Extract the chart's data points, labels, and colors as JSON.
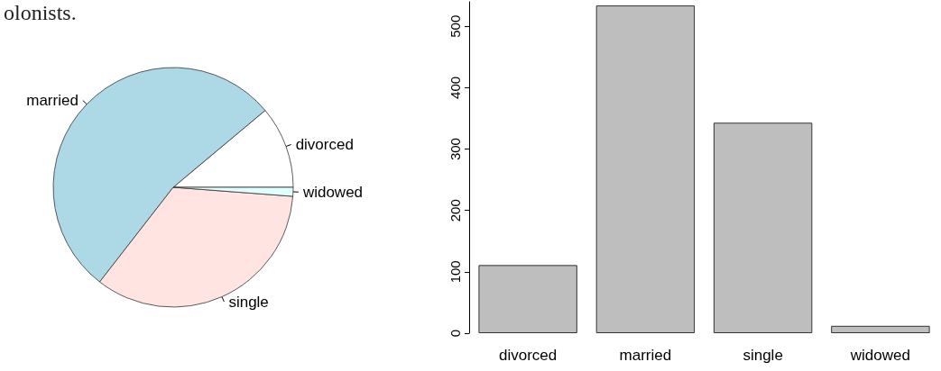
{
  "chart_data": [
    {
      "type": "pie",
      "categories": [
        "divorced",
        "married",
        "single",
        "widowed"
      ],
      "values": [
        11.1,
        53.4,
        34.3,
        1.2
      ],
      "colors": [
        "#ffffff",
        "#add8e6",
        "#ffe4e1",
        "#e0ffff"
      ],
      "annotations": [
        "olonists."
      ]
    },
    {
      "type": "bar",
      "categories": [
        "divorced",
        "married",
        "single",
        "widowed"
      ],
      "values": [
        111,
        534,
        343,
        12
      ],
      "color": "#bebebe",
      "ylim": [
        0,
        540
      ],
      "yticks": [
        0,
        100,
        200,
        300,
        400,
        500
      ],
      "grid": false
    }
  ]
}
